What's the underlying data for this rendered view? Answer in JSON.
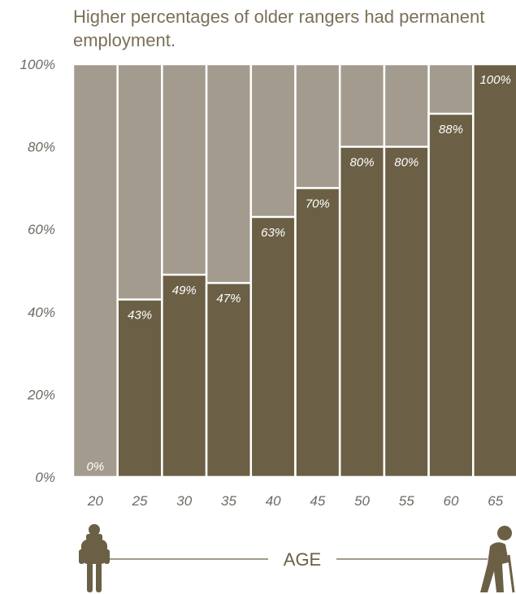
{
  "chart_data": {
    "type": "bar",
    "stacked": true,
    "title": "Higher percentages of older rangers had permanent employment.",
    "xlabel": "AGE",
    "ylabel": "",
    "categories": [
      "20",
      "25",
      "30",
      "35",
      "40",
      "45",
      "50",
      "55",
      "60",
      "65"
    ],
    "values": [
      0,
      43,
      49,
      47,
      63,
      70,
      80,
      80,
      88,
      100
    ],
    "data_labels": [
      "0%",
      "43%",
      "49%",
      "47%",
      "63%",
      "70%",
      "80%",
      "80%",
      "88%",
      "100%"
    ],
    "ylim": [
      0,
      100
    ],
    "yticks": [
      "0%",
      "20%",
      "40%",
      "60%",
      "80%",
      "100%"
    ],
    "ytick_values": [
      0,
      20,
      40,
      60,
      80,
      100
    ],
    "grid": false,
    "legend": "none",
    "colors": {
      "value": "#6b6045",
      "remainder": "#a39b8d",
      "text": "#7a7058",
      "axis": "#6e6a64"
    },
    "icons": {
      "left": "young-hiker-icon",
      "right": "elderly-walker-icon"
    }
  }
}
